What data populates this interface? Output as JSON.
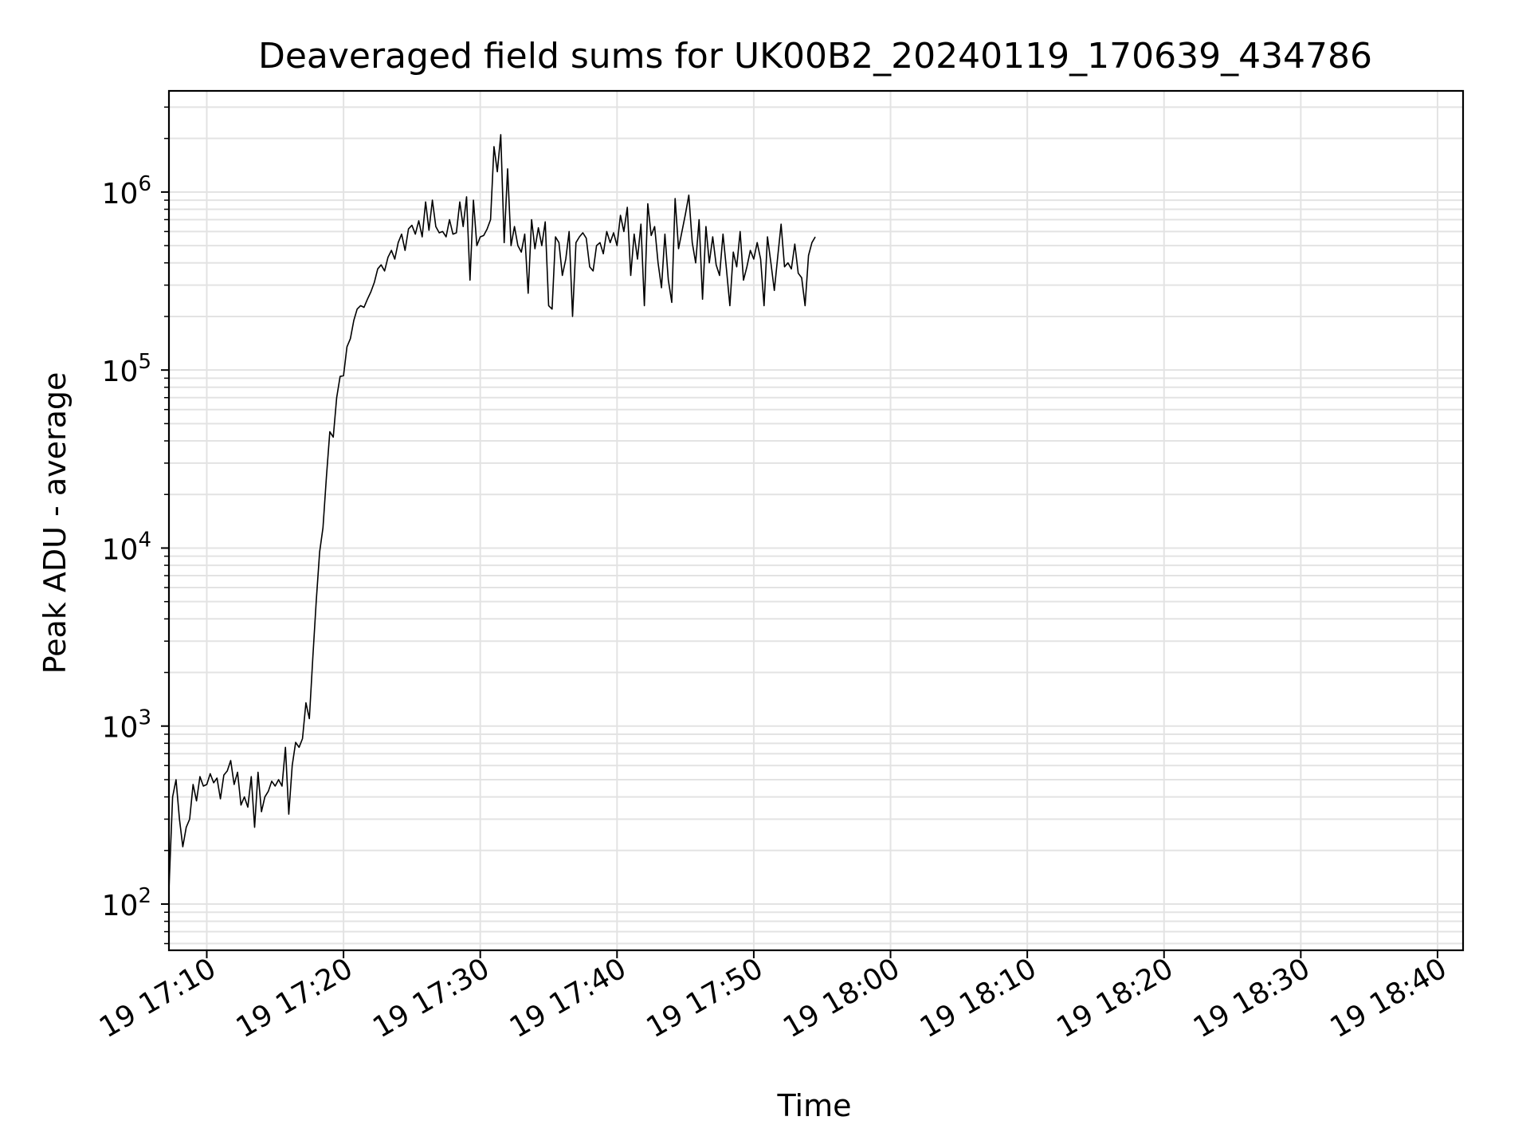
{
  "chart_data": {
    "type": "line",
    "title": "Deaveraged field sums for UK00B2_20240119_170639_434786",
    "xlabel": "Time",
    "ylabel": "Peak ADU - average",
    "yscale": "log",
    "x_unit": "minutes of 2024-01-19 local time",
    "xlim": [
      "17:07:14",
      "18:41:52"
    ],
    "ylim": [
      55,
      3700000
    ],
    "grid": true,
    "x_ticks": [
      "19 17:10",
      "19 17:20",
      "19 17:30",
      "19 17:40",
      "19 17:50",
      "19 18:00",
      "19 18:10",
      "19 18:20",
      "19 18:30",
      "19 18:40"
    ],
    "y_ticks": [
      {
        "base": "10",
        "exp": "2"
      },
      {
        "base": "10",
        "exp": "3"
      },
      {
        "base": "10",
        "exp": "4"
      },
      {
        "base": "10",
        "exp": "5"
      },
      {
        "base": "10",
        "exp": "6"
      }
    ],
    "series": [
      {
        "color": "#000000",
        "points": [
          [
            "17:07:14",
            120
          ],
          [
            "17:07:30",
            400
          ],
          [
            "17:07:45",
            500
          ],
          [
            "17:08:00",
            300
          ],
          [
            "17:08:15",
            210
          ],
          [
            "17:08:30",
            270
          ],
          [
            "17:08:45",
            300
          ],
          [
            "17:09:00",
            470
          ],
          [
            "17:09:15",
            380
          ],
          [
            "17:09:30",
            520
          ],
          [
            "17:09:45",
            460
          ],
          [
            "17:10:00",
            470
          ],
          [
            "17:10:15",
            540
          ],
          [
            "17:10:30",
            480
          ],
          [
            "17:10:45",
            510
          ],
          [
            "17:11:00",
            390
          ],
          [
            "17:11:15",
            530
          ],
          [
            "17:11:30",
            560
          ],
          [
            "17:11:45",
            640
          ],
          [
            "17:12:00",
            470
          ],
          [
            "17:12:15",
            550
          ],
          [
            "17:12:30",
            360
          ],
          [
            "17:12:45",
            400
          ],
          [
            "17:13:00",
            350
          ],
          [
            "17:13:15",
            520
          ],
          [
            "17:13:30",
            270
          ],
          [
            "17:13:45",
            550
          ],
          [
            "17:14:00",
            330
          ],
          [
            "17:14:15",
            400
          ],
          [
            "17:14:30",
            430
          ],
          [
            "17:14:45",
            490
          ],
          [
            "17:15:00",
            460
          ],
          [
            "17:15:15",
            500
          ],
          [
            "17:15:30",
            460
          ],
          [
            "17:15:45",
            760
          ],
          [
            "17:16:00",
            320
          ],
          [
            "17:16:15",
            600
          ],
          [
            "17:16:30",
            810
          ],
          [
            "17:16:45",
            760
          ],
          [
            "17:17:00",
            850
          ],
          [
            "17:17:15",
            1350
          ],
          [
            "17:17:30",
            1100
          ],
          [
            "17:17:45",
            2400
          ],
          [
            "17:18:00",
            5000
          ],
          [
            "17:18:15",
            9500
          ],
          [
            "17:18:30",
            13000
          ],
          [
            "17:18:45",
            25000
          ],
          [
            "17:19:00",
            45000
          ],
          [
            "17:19:15",
            42000
          ],
          [
            "17:19:30",
            70000
          ],
          [
            "17:19:45",
            92000
          ],
          [
            "17:20:00",
            93000
          ],
          [
            "17:20:15",
            135000
          ],
          [
            "17:20:30",
            150000
          ],
          [
            "17:20:45",
            190000
          ],
          [
            "17:21:00",
            220000
          ],
          [
            "17:21:15",
            230000
          ],
          [
            "17:21:30",
            225000
          ],
          [
            "17:21:45",
            250000
          ],
          [
            "17:22:00",
            275000
          ],
          [
            "17:22:15",
            310000
          ],
          [
            "17:22:30",
            370000
          ],
          [
            "17:22:45",
            390000
          ],
          [
            "17:23:00",
            360000
          ],
          [
            "17:23:15",
            430000
          ],
          [
            "17:23:30",
            470000
          ],
          [
            "17:23:45",
            420000
          ],
          [
            "17:24:00",
            520000
          ],
          [
            "17:24:15",
            580000
          ],
          [
            "17:24:30",
            470000
          ],
          [
            "17:24:45",
            620000
          ],
          [
            "17:25:00",
            650000
          ],
          [
            "17:25:15",
            580000
          ],
          [
            "17:25:30",
            690000
          ],
          [
            "17:25:45",
            560000
          ],
          [
            "17:26:00",
            880000
          ],
          [
            "17:26:15",
            610000
          ],
          [
            "17:26:30",
            900000
          ],
          [
            "17:26:45",
            640000
          ],
          [
            "17:27:00",
            590000
          ],
          [
            "17:27:15",
            600000
          ],
          [
            "17:27:30",
            560000
          ],
          [
            "17:27:45",
            700000
          ],
          [
            "17:28:00",
            580000
          ],
          [
            "17:28:15",
            590000
          ],
          [
            "17:28:30",
            880000
          ],
          [
            "17:28:45",
            640000
          ],
          [
            "17:29:00",
            940000
          ],
          [
            "17:29:15",
            320000
          ],
          [
            "17:29:30",
            900000
          ],
          [
            "17:29:45",
            500000
          ],
          [
            "17:30:00",
            560000
          ],
          [
            "17:30:15",
            570000
          ],
          [
            "17:30:30",
            620000
          ],
          [
            "17:30:45",
            700000
          ],
          [
            "17:31:00",
            1800000
          ],
          [
            "17:31:15",
            1300000
          ],
          [
            "17:31:30",
            2100000
          ],
          [
            "17:31:45",
            520000
          ],
          [
            "17:32:00",
            1350000
          ],
          [
            "17:32:15",
            500000
          ],
          [
            "17:32:30",
            640000
          ],
          [
            "17:32:45",
            500000
          ],
          [
            "17:33:00",
            460000
          ],
          [
            "17:33:15",
            580000
          ],
          [
            "17:33:30",
            270000
          ],
          [
            "17:33:45",
            700000
          ],
          [
            "17:34:00",
            480000
          ],
          [
            "17:34:15",
            630000
          ],
          [
            "17:34:30",
            500000
          ],
          [
            "17:34:45",
            680000
          ],
          [
            "17:35:00",
            230000
          ],
          [
            "17:35:15",
            220000
          ],
          [
            "17:35:30",
            560000
          ],
          [
            "17:35:45",
            520000
          ],
          [
            "17:36:00",
            340000
          ],
          [
            "17:36:15",
            420000
          ],
          [
            "17:36:30",
            600000
          ],
          [
            "17:36:45",
            200000
          ],
          [
            "17:37:00",
            520000
          ],
          [
            "17:37:15",
            560000
          ],
          [
            "17:37:30",
            590000
          ],
          [
            "17:37:45",
            550000
          ],
          [
            "17:38:00",
            380000
          ],
          [
            "17:38:15",
            360000
          ],
          [
            "17:38:30",
            500000
          ],
          [
            "17:38:45",
            520000
          ],
          [
            "17:39:00",
            450000
          ],
          [
            "17:39:15",
            600000
          ],
          [
            "17:39:30",
            520000
          ],
          [
            "17:39:45",
            590000
          ],
          [
            "17:40:00",
            500000
          ],
          [
            "17:40:15",
            740000
          ],
          [
            "17:40:30",
            600000
          ],
          [
            "17:40:45",
            820000
          ],
          [
            "17:41:00",
            340000
          ],
          [
            "17:41:15",
            580000
          ],
          [
            "17:41:30",
            420000
          ],
          [
            "17:41:45",
            660000
          ],
          [
            "17:42:00",
            230000
          ],
          [
            "17:42:15",
            860000
          ],
          [
            "17:42:30",
            570000
          ],
          [
            "17:42:45",
            640000
          ],
          [
            "17:43:00",
            400000
          ],
          [
            "17:43:15",
            290000
          ],
          [
            "17:43:30",
            580000
          ],
          [
            "17:43:45",
            320000
          ],
          [
            "17:44:00",
            240000
          ],
          [
            "17:44:15",
            920000
          ],
          [
            "17:44:30",
            480000
          ],
          [
            "17:44:45",
            600000
          ],
          [
            "17:45:00",
            750000
          ],
          [
            "17:45:15",
            960000
          ],
          [
            "17:45:30",
            520000
          ],
          [
            "17:45:45",
            400000
          ],
          [
            "17:46:00",
            700000
          ],
          [
            "17:46:15",
            250000
          ],
          [
            "17:46:30",
            640000
          ],
          [
            "17:46:45",
            400000
          ],
          [
            "17:47:00",
            560000
          ],
          [
            "17:47:15",
            390000
          ],
          [
            "17:47:30",
            340000
          ],
          [
            "17:47:45",
            580000
          ],
          [
            "17:48:00",
            370000
          ],
          [
            "17:48:15",
            230000
          ],
          [
            "17:48:30",
            460000
          ],
          [
            "17:48:45",
            380000
          ],
          [
            "17:49:00",
            600000
          ],
          [
            "17:49:15",
            320000
          ],
          [
            "17:49:30",
            380000
          ],
          [
            "17:49:45",
            470000
          ],
          [
            "17:50:00",
            420000
          ],
          [
            "17:50:15",
            520000
          ],
          [
            "17:50:30",
            420000
          ],
          [
            "17:50:45",
            230000
          ],
          [
            "17:51:00",
            560000
          ],
          [
            "17:51:15",
            400000
          ],
          [
            "17:51:30",
            280000
          ],
          [
            "17:51:45",
            430000
          ],
          [
            "17:52:00",
            660000
          ],
          [
            "17:52:15",
            380000
          ],
          [
            "17:52:30",
            400000
          ],
          [
            "17:52:45",
            370000
          ],
          [
            "17:53:00",
            510000
          ],
          [
            "17:53:15",
            350000
          ],
          [
            "17:53:30",
            330000
          ],
          [
            "17:53:45",
            230000
          ],
          [
            "17:54:00",
            440000
          ],
          [
            "17:54:15",
            520000
          ],
          [
            "17:54:30",
            560000
          ]
        ]
      }
    ]
  }
}
